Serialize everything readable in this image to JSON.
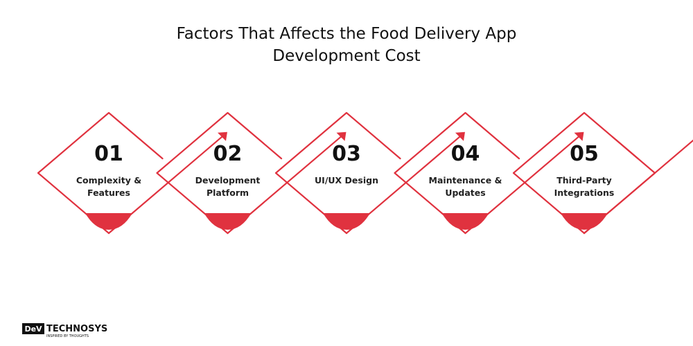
{
  "header": {
    "title": [
      "Factors That Affects the Food Delivery App",
      "Development Cost"
    ]
  },
  "steps": [
    {
      "number": "01",
      "label": [
        "Complexity &",
        "Features"
      ]
    },
    {
      "number": "02",
      "label": [
        "Development",
        "Platform"
      ]
    },
    {
      "number": "03",
      "label": [
        "UI/UX Design"
      ]
    },
    {
      "number": "04",
      "label": [
        "Maintenance &",
        "Updates"
      ]
    },
    {
      "number": "05",
      "label": [
        "Third-Party",
        "Integrations"
      ]
    }
  ],
  "logo": {
    "mark": "DeV",
    "name": "TECHNOSYS",
    "tagline": "INSPIRED BY THOUGHTS"
  }
}
